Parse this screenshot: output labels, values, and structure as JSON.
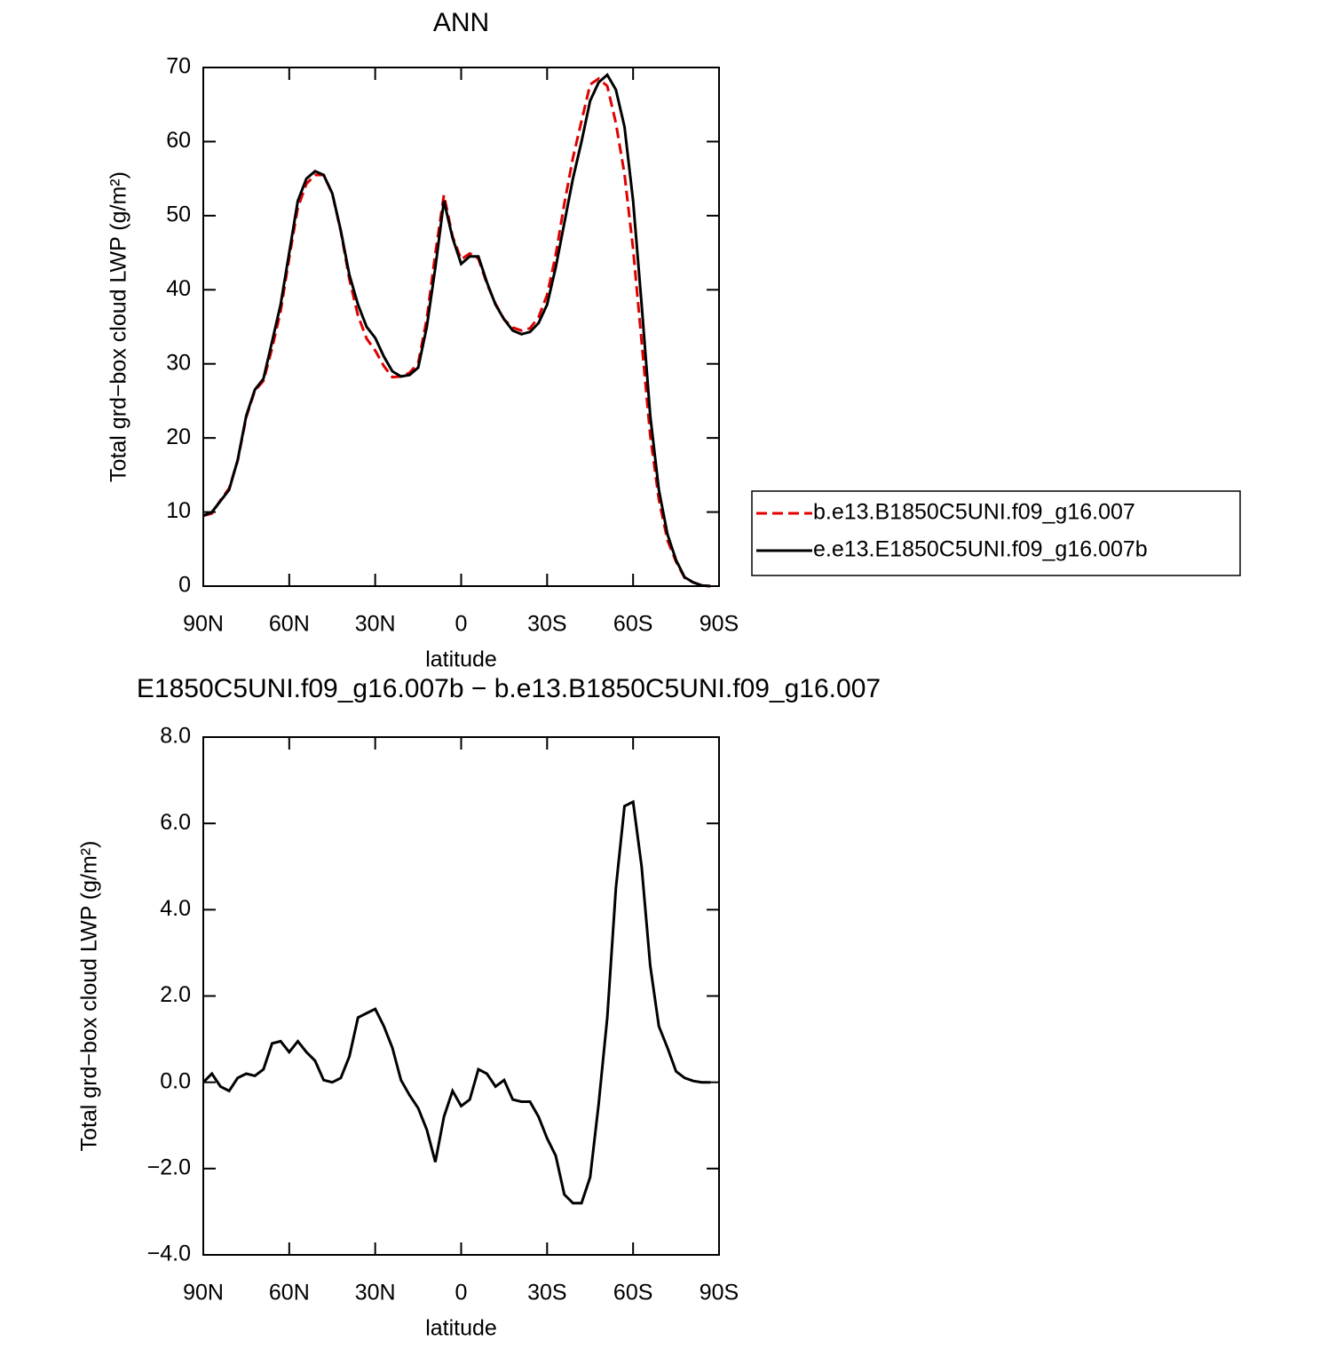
{
  "chart_data": [
    {
      "type": "line",
      "title": "ANN",
      "x_label": "latitude",
      "y_label": "Total grd−box cloud LWP (g/m²)",
      "x": [
        90,
        87,
        84,
        81,
        78,
        75,
        72,
        69,
        66,
        63,
        60,
        57,
        54,
        51,
        48,
        45,
        42,
        39,
        36,
        33,
        30,
        27,
        24,
        21,
        18,
        15,
        12,
        9,
        6,
        3,
        0,
        -3,
        -6,
        -9,
        -12,
        -15,
        -18,
        -21,
        -24,
        -27,
        -30,
        -33,
        -36,
        -39,
        -42,
        -45,
        -48,
        -51,
        -54,
        -57,
        -60,
        -63,
        -66,
        -69,
        -72,
        -75,
        -78,
        -81,
        -84,
        -87
      ],
      "series": [
        {
          "name": "b.e13.B1850C5UNI.f09_g16.007",
          "color": "#e00000",
          "line_style": "dashed",
          "values": [
            9.5,
            9.8,
            11.6,
            13.2,
            16.9,
            22.8,
            26.4,
            27.7,
            32.1,
            37.1,
            44.3,
            51.1,
            54.3,
            55.5,
            55.5,
            53,
            47.9,
            41.4,
            36.5,
            33.4,
            31.8,
            29.7,
            28.2,
            28.3,
            28.8,
            30.1,
            36.1,
            44.9,
            52.8,
            47.2,
            44.1,
            44.9,
            44.2,
            40.8,
            38.1,
            36,
            34.9,
            34.5,
            34.8,
            36.3,
            39.3,
            44.7,
            51.6,
            57.8,
            62.8,
            67.7,
            68.5,
            67.5,
            62.5,
            55.6,
            45.5,
            33,
            20.3,
            11.7,
            6.2,
            3.3,
            1.1,
            0.5,
            0.1,
            0
          ]
        },
        {
          "name": "e.e13.E1850C5UNI.f09_g16.007b",
          "color": "#000000",
          "line_style": "solid",
          "values": [
            9.5,
            10,
            11.5,
            13,
            17,
            23,
            26.5,
            28,
            33,
            38,
            45,
            52,
            55,
            56,
            55.5,
            53,
            48,
            42,
            38,
            35,
            33.5,
            31,
            29,
            28.3,
            28.5,
            29.5,
            35,
            43,
            52,
            47,
            43.5,
            44.5,
            44.5,
            41,
            38,
            36,
            34.5,
            34,
            34.3,
            35.5,
            38,
            43,
            49,
            55,
            60,
            65.5,
            68,
            69,
            67,
            62,
            52,
            38,
            23,
            13,
            7,
            3.5,
            1.2,
            0.5,
            0.1,
            0
          ]
        }
      ],
      "xlim": [
        90,
        -90
      ],
      "xticks": [
        {
          "value": 90,
          "label": "90N"
        },
        {
          "value": 60,
          "label": "60N"
        },
        {
          "value": 30,
          "label": "30N"
        },
        0,
        {
          "value": -30,
          "label": "30S"
        },
        {
          "value": -60,
          "label": "60S"
        },
        {
          "value": -90,
          "label": "90S"
        }
      ],
      "ylim": [
        0,
        70
      ],
      "yticks": [
        0,
        10,
        20,
        30,
        40,
        50,
        60,
        70
      ],
      "legend": "outside-right"
    },
    {
      "type": "line",
      "title": "E1850C5UNI.f09_g16.007b − b.e13.B1850C5UNI.f09_g16.007",
      "x_label": "latitude",
      "y_label": "Total grd−box cloud LWP (g/m²)",
      "x": [
        90,
        87,
        84,
        81,
        78,
        75,
        72,
        69,
        66,
        63,
        60,
        57,
        54,
        51,
        48,
        45,
        42,
        39,
        36,
        33,
        30,
        27,
        24,
        21,
        18,
        15,
        12,
        9,
        6,
        3,
        0,
        -3,
        -6,
        -9,
        -12,
        -15,
        -18,
        -21,
        -24,
        -27,
        -30,
        -33,
        -36,
        -39,
        -42,
        -45,
        -48,
        -51,
        -54,
        -57,
        -60,
        -63,
        -66,
        -69,
        -72,
        -75,
        -78,
        -81,
        -84,
        -87
      ],
      "color": "#000000",
      "values": [
        0,
        0.2,
        -0.1,
        -0.2,
        0.1,
        0.2,
        0.15,
        0.3,
        0.9,
        0.95,
        0.7,
        0.95,
        0.7,
        0.5,
        0.05,
        0,
        0.1,
        0.6,
        1.5,
        1.6,
        1.7,
        1.3,
        0.8,
        0.05,
        -0.3,
        -0.6,
        -1.1,
        -1.85,
        -0.8,
        -0.2,
        -0.55,
        -0.4,
        0.3,
        0.2,
        -0.1,
        0.05,
        -0.4,
        -0.45,
        -0.45,
        -0.8,
        -1.3,
        -1.7,
        -2.6,
        -2.8,
        -2.8,
        -2.2,
        -0.5,
        1.5,
        4.5,
        6.4,
        6.5,
        5,
        2.7,
        1.3,
        0.8,
        0.25,
        0.1,
        0.03,
        0,
        0
      ],
      "xlim": [
        90,
        -90
      ],
      "xticks": [
        {
          "value": 90,
          "label": "90N"
        },
        {
          "value": 60,
          "label": "60N"
        },
        {
          "value": 30,
          "label": "30N"
        },
        0,
        {
          "value": -30,
          "label": "30S"
        },
        {
          "value": -60,
          "label": "60S"
        },
        {
          "value": -90,
          "label": "90S"
        }
      ],
      "ylim": [
        -4,
        8
      ],
      "yticks": [
        {
          "value": -4,
          "label": "−4.0"
        },
        {
          "value": -2,
          "label": "−2.0"
        },
        {
          "value": 0,
          "label": "0.0"
        },
        {
          "value": 2,
          "label": "2.0"
        },
        {
          "value": 4,
          "label": "4.0"
        },
        {
          "value": 6,
          "label": "6.0"
        },
        {
          "value": 8,
          "label": "8.0"
        }
      ]
    }
  ]
}
